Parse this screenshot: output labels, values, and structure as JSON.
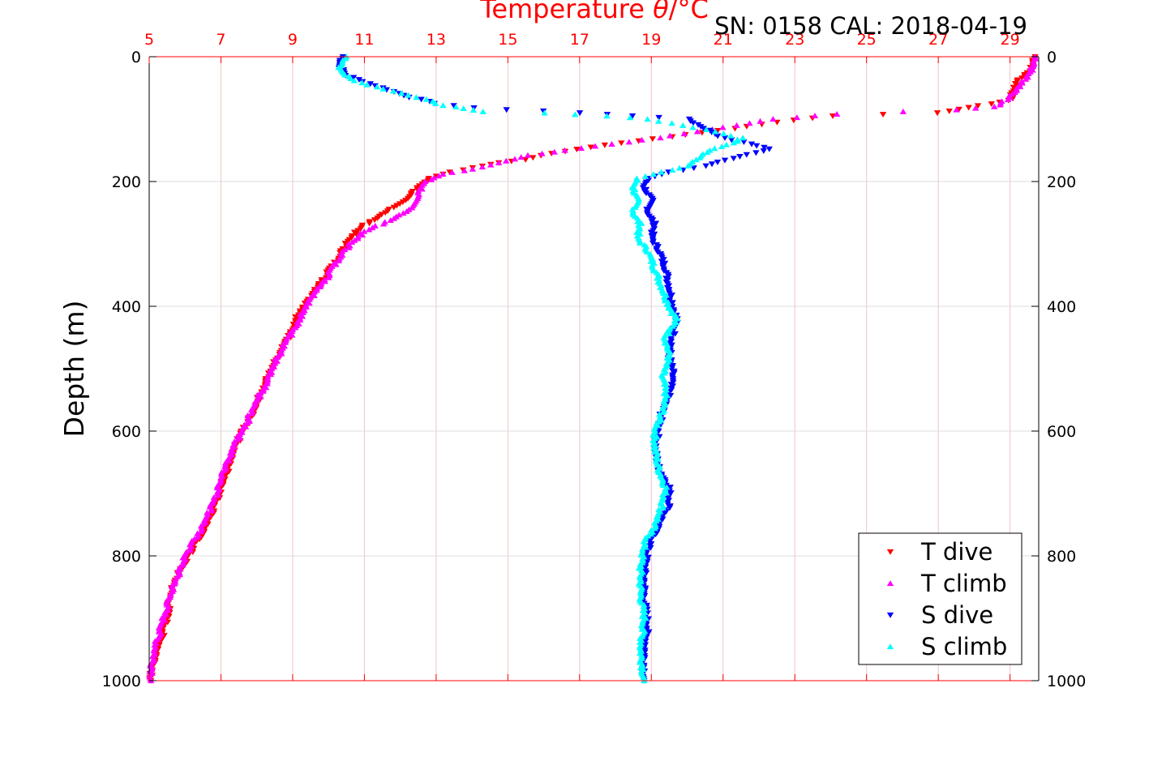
{
  "header": {
    "title_prefix": "Temperature ",
    "title_symbol": "θ",
    "title_suffix": "/°C",
    "serial_text": "SN: 0158  CAL: 2018-04-19"
  },
  "chart_data": {
    "type": "scatter",
    "title": "Temperature θ/°C",
    "xlabel": "",
    "ylabel": "Depth (m)",
    "x_top_ticks": [
      "5",
      "7",
      "9",
      "11",
      "13",
      "15",
      "17",
      "19",
      "21",
      "23",
      "25",
      "27",
      "29"
    ],
    "x_top_tick_values": [
      5,
      7,
      9,
      11,
      13,
      15,
      17,
      19,
      21,
      23,
      25,
      27,
      29
    ],
    "xlim": [
      5,
      29.8
    ],
    "y_ticks": [
      "0",
      "200",
      "400",
      "600",
      "800",
      "1000"
    ],
    "y_tick_values": [
      0,
      200,
      400,
      600,
      800,
      1000
    ],
    "ylim": [
      0,
      1000
    ],
    "y_reversed": true,
    "grid": true,
    "legend_position": "bottom-right",
    "colors": {
      "t_axis": "#ff0000",
      "grid": "#f2c4c4",
      "t_dive": "#ff0000",
      "t_climb": "#ff00ff",
      "s_dive": "#0000ff",
      "s_climb": "#00ffff"
    },
    "series": [
      {
        "name": "T dive",
        "marker": "triangle-down",
        "color": "#ff0000",
        "points": [
          [
            29.7,
            0
          ],
          [
            29.6,
            20
          ],
          [
            29.2,
            40
          ],
          [
            29.0,
            70
          ],
          [
            27.0,
            90
          ],
          [
            24.0,
            95
          ],
          [
            22.5,
            105
          ],
          [
            21.3,
            115
          ],
          [
            20.0,
            125
          ],
          [
            18.6,
            135
          ],
          [
            17.3,
            145
          ],
          [
            16.2,
            155
          ],
          [
            15.5,
            165
          ],
          [
            14.8,
            170
          ],
          [
            14.0,
            178
          ],
          [
            13.4,
            185
          ],
          [
            12.8,
            195
          ],
          [
            12.5,
            210
          ],
          [
            12.1,
            230
          ],
          [
            11.6,
            250
          ],
          [
            11.0,
            270
          ],
          [
            10.6,
            290
          ],
          [
            10.3,
            320
          ],
          [
            10.0,
            345
          ],
          [
            9.7,
            370
          ],
          [
            9.4,
            395
          ],
          [
            9.1,
            420
          ],
          [
            8.9,
            450
          ],
          [
            8.6,
            480
          ],
          [
            8.3,
            510
          ],
          [
            8.1,
            540
          ],
          [
            7.9,
            570
          ],
          [
            7.6,
            600
          ],
          [
            7.3,
            640
          ],
          [
            7.1,
            680
          ],
          [
            6.9,
            710
          ],
          [
            6.7,
            740
          ],
          [
            6.4,
            770
          ],
          [
            6.1,
            800
          ],
          [
            5.8,
            830
          ],
          [
            5.6,
            860
          ],
          [
            5.5,
            900
          ],
          [
            5.3,
            940
          ],
          [
            5.1,
            980
          ],
          [
            5.05,
            1000
          ]
        ]
      },
      {
        "name": "T climb",
        "marker": "triangle-up",
        "color": "#ff00ff",
        "points": [
          [
            29.7,
            0
          ],
          [
            29.7,
            10
          ],
          [
            29.5,
            30
          ],
          [
            29.1,
            60
          ],
          [
            28.6,
            80
          ],
          [
            27.5,
            85
          ],
          [
            26.0,
            88
          ],
          [
            24.2,
            92
          ],
          [
            22.4,
            100
          ],
          [
            21.4,
            110
          ],
          [
            20.3,
            120
          ],
          [
            19.2,
            130
          ],
          [
            17.9,
            140
          ],
          [
            16.6,
            150
          ],
          [
            15.6,
            158
          ],
          [
            14.8,
            170
          ],
          [
            14.0,
            180
          ],
          [
            13.2,
            188
          ],
          [
            12.7,
            200
          ],
          [
            12.4,
            230
          ],
          [
            12.3,
            245
          ],
          [
            11.6,
            265
          ],
          [
            11.0,
            280
          ],
          [
            10.6,
            300
          ],
          [
            10.2,
            330
          ],
          [
            9.9,
            360
          ],
          [
            9.6,
            380
          ],
          [
            9.3,
            410
          ],
          [
            9.0,
            440
          ],
          [
            8.7,
            470
          ],
          [
            8.4,
            500
          ],
          [
            8.2,
            530
          ],
          [
            7.9,
            560
          ],
          [
            7.7,
            590
          ],
          [
            7.4,
            620
          ],
          [
            7.1,
            660
          ],
          [
            6.9,
            700
          ],
          [
            6.6,
            740
          ],
          [
            6.3,
            770
          ],
          [
            6.0,
            800
          ],
          [
            5.8,
            830
          ],
          [
            5.6,
            860
          ],
          [
            5.4,
            900
          ],
          [
            5.2,
            940
          ],
          [
            5.1,
            970
          ],
          [
            5.05,
            1000
          ]
        ]
      },
      {
        "name": "S dive",
        "marker": "triangle-down",
        "color": "#0000ff",
        "points": [
          [
            10.4,
            0
          ],
          [
            10.3,
            15
          ],
          [
            10.5,
            30
          ],
          [
            11.0,
            40
          ],
          [
            11.5,
            50
          ],
          [
            12.3,
            65
          ],
          [
            13.0,
            75
          ],
          [
            14.0,
            82
          ],
          [
            15.0,
            85
          ],
          [
            16.0,
            87
          ],
          [
            17.0,
            90
          ],
          [
            18.5,
            95
          ],
          [
            20.0,
            100
          ],
          [
            20.5,
            115
          ],
          [
            21.0,
            130
          ],
          [
            21.8,
            140
          ],
          [
            22.3,
            148
          ],
          [
            21.5,
            160
          ],
          [
            20.5,
            175
          ],
          [
            19.5,
            185
          ],
          [
            18.9,
            195
          ],
          [
            18.8,
            210
          ],
          [
            19.0,
            230
          ],
          [
            18.9,
            250
          ],
          [
            19.1,
            270
          ],
          [
            19.0,
            290
          ],
          [
            19.2,
            310
          ],
          [
            19.4,
            340
          ],
          [
            19.5,
            370
          ],
          [
            19.6,
            400
          ],
          [
            19.7,
            420
          ],
          [
            19.6,
            450
          ],
          [
            19.5,
            480
          ],
          [
            19.6,
            510
          ],
          [
            19.5,
            540
          ],
          [
            19.3,
            570
          ],
          [
            19.2,
            600
          ],
          [
            19.1,
            630
          ],
          [
            19.2,
            660
          ],
          [
            19.5,
            690
          ],
          [
            19.5,
            720
          ],
          [
            19.2,
            750
          ],
          [
            18.9,
            790
          ],
          [
            18.8,
            830
          ],
          [
            18.8,
            870
          ],
          [
            18.9,
            910
          ],
          [
            18.8,
            960
          ],
          [
            18.8,
            1000
          ]
        ]
      },
      {
        "name": "S climb",
        "marker": "triangle-up",
        "color": "#00ffff",
        "points": [
          [
            10.5,
            0
          ],
          [
            10.3,
            20
          ],
          [
            10.6,
            35
          ],
          [
            11.1,
            45
          ],
          [
            11.8,
            55
          ],
          [
            12.5,
            65
          ],
          [
            13.2,
            78
          ],
          [
            13.8,
            83
          ],
          [
            14.3,
            88
          ],
          [
            16.0,
            90
          ],
          [
            17.8,
            95
          ],
          [
            18.9,
            100
          ],
          [
            19.9,
            110
          ],
          [
            20.8,
            120
          ],
          [
            21.5,
            130
          ],
          [
            21.3,
            138
          ],
          [
            20.6,
            150
          ],
          [
            20.3,
            165
          ],
          [
            20.0,
            175
          ],
          [
            19.3,
            185
          ],
          [
            18.6,
            195
          ],
          [
            18.5,
            210
          ],
          [
            18.6,
            230
          ],
          [
            18.5,
            250
          ],
          [
            18.7,
            270
          ],
          [
            18.6,
            290
          ],
          [
            18.9,
            310
          ],
          [
            19.1,
            340
          ],
          [
            19.3,
            370
          ],
          [
            19.5,
            400
          ],
          [
            19.7,
            420
          ],
          [
            19.4,
            450
          ],
          [
            19.5,
            480
          ],
          [
            19.3,
            510
          ],
          [
            19.4,
            540
          ],
          [
            19.3,
            570
          ],
          [
            19.1,
            600
          ],
          [
            19.1,
            630
          ],
          [
            19.2,
            660
          ],
          [
            19.4,
            690
          ],
          [
            19.3,
            720
          ],
          [
            19.1,
            750
          ],
          [
            18.8,
            780
          ],
          [
            18.7,
            820
          ],
          [
            18.7,
            860
          ],
          [
            18.8,
            900
          ],
          [
            18.7,
            950
          ],
          [
            18.8,
            1000
          ]
        ]
      }
    ]
  }
}
